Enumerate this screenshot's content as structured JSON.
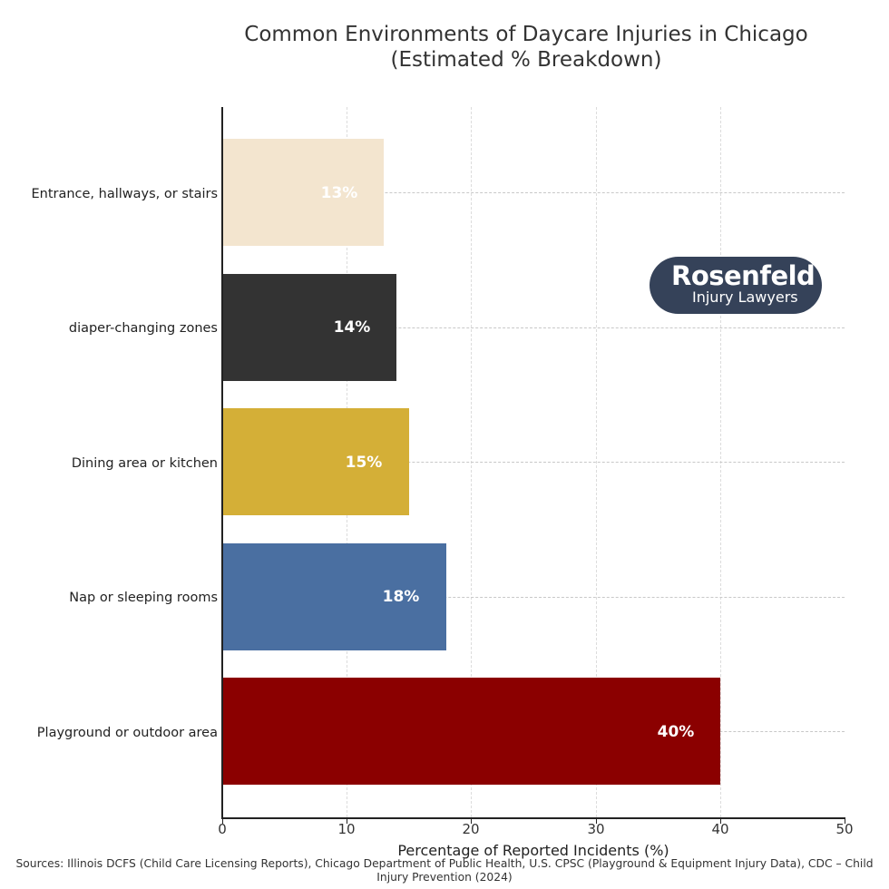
{
  "title_line1": "Common Environments of Daycare Injuries in Chicago",
  "title_line2": "(Estimated % Breakdown)",
  "xlabel": "Percentage of Reported Incidents (%)",
  "xticks": [
    "0",
    "10",
    "20",
    "30",
    "40",
    "50"
  ],
  "sources_line1": "Sources: Illinois DCFS (Child Care Licensing Reports), Chicago Department of Public Health, U.S. CPSC (Playground & Equipment Injury Data), CDC – Child",
  "sources_line2": "Injury Prevention (2024)",
  "logo": {
    "name": "Rosenfeld",
    "tagline": "Injury Lawyers",
    "bg_color": "#354259"
  },
  "bars": [
    {
      "category": "Entrance, hallways, or stairs",
      "value": 13,
      "label": "13%",
      "color": "#f3e5cf"
    },
    {
      "category": "diaper-changing zones",
      "value": 14,
      "label": "14%",
      "color": "#333333"
    },
    {
      "category": "Dining area or kitchen",
      "value": 15,
      "label": "15%",
      "color": "#d4af37"
    },
    {
      "category": "Nap or sleeping rooms",
      "value": 18,
      "label": "18%",
      "color": "#4a6fa1"
    },
    {
      "category": "Playground or outdoor area",
      "value": 40,
      "label": "40%",
      "color": "#8b0000"
    }
  ],
  "chart_data": {
    "type": "bar",
    "orientation": "horizontal",
    "title": "Common Environments of Daycare Injuries in Chicago (Estimated % Breakdown)",
    "categories": [
      "Entrance, hallways, or stairs",
      "diaper-changing zones",
      "Dining area or kitchen",
      "Nap or sleeping rooms",
      "Playground or outdoor area"
    ],
    "values": [
      13,
      14,
      15,
      18,
      40
    ],
    "data_labels": [
      "13%",
      "14%",
      "15%",
      "18%",
      "40%"
    ],
    "colors": [
      "#f3e5cf",
      "#333333",
      "#d4af37",
      "#4a6fa1",
      "#8b0000"
    ],
    "xlabel": "Percentage of Reported Incidents (%)",
    "ylabel": "",
    "xlim": [
      0,
      50
    ],
    "xticks": [
      0,
      10,
      20,
      30,
      40,
      50
    ],
    "grid": "dashed light gray, vertical at x ticks and horizontal at bar centers",
    "legend": "none",
    "annotations": [
      "Rosenfeld Injury Lawyers logo (upper right)",
      "Sources: Illinois DCFS (Child Care Licensing Reports), Chicago Department of Public Health, U.S. CPSC (Playground & Equipment Injury Data), CDC – Child Injury Prevention (2024)"
    ]
  }
}
